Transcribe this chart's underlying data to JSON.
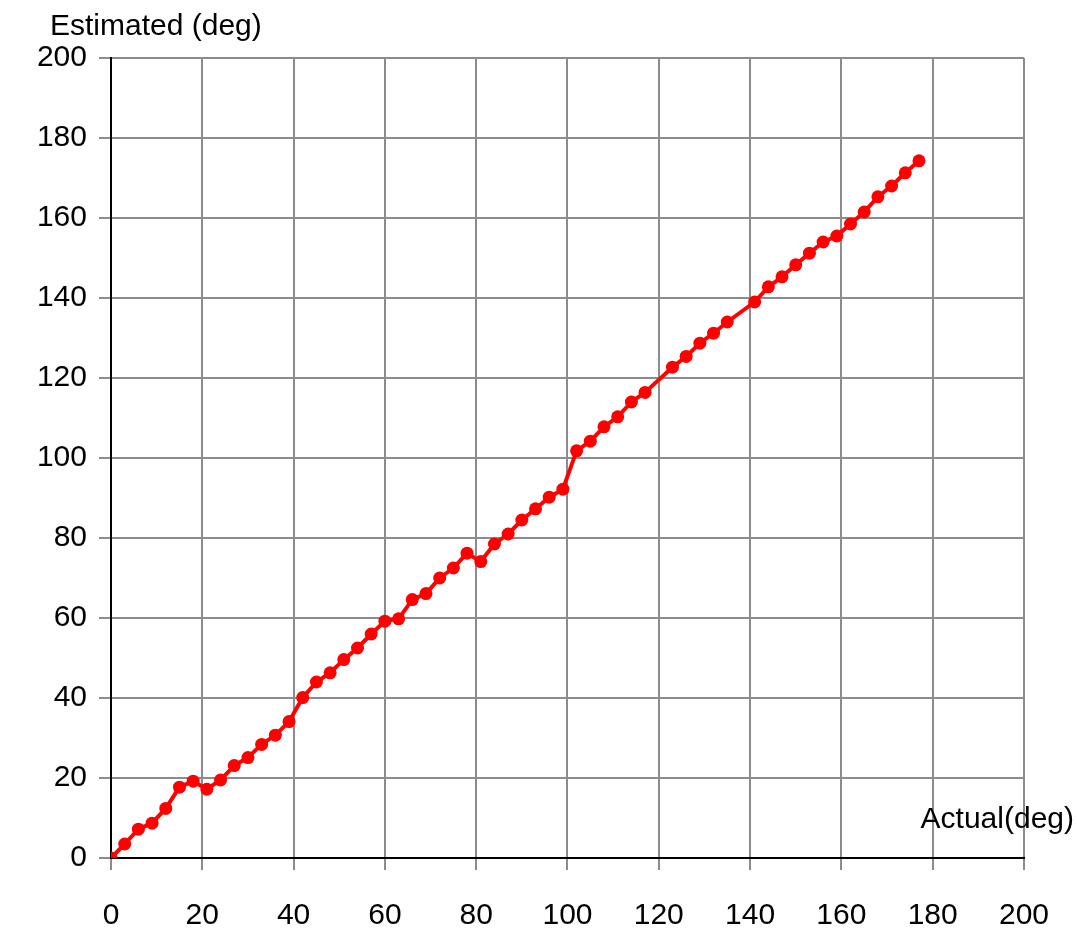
{
  "chart_data": {
    "type": "line",
    "xlabel": "Actual(deg)",
    "ylabel": "Estimated (deg)",
    "x": [
      0,
      3,
      6,
      9,
      12,
      15,
      18,
      21,
      24,
      27,
      30,
      33,
      36,
      39,
      42,
      45,
      48,
      51,
      54,
      57,
      60,
      63,
      66,
      69,
      72,
      75,
      78,
      81,
      84,
      87,
      90,
      93,
      96,
      99,
      102,
      105,
      108,
      111,
      114,
      117,
      123,
      126,
      129,
      132,
      135,
      141,
      144,
      147,
      150,
      153,
      156,
      159,
      162,
      165,
      168,
      171,
      174,
      177
    ],
    "values": [
      0,
      3.5,
      7.2,
      8.7,
      12.4,
      17.7,
      19.2,
      17.2,
      19.5,
      23.1,
      25.1,
      28.4,
      30.7,
      34.1,
      40.1,
      44,
      46.3,
      49.6,
      52.5,
      56,
      59.2,
      59.8,
      64.6,
      66.1,
      70,
      72.5,
      76.2,
      74.1,
      78.5,
      81,
      84.5,
      87.3,
      90.2,
      92.2,
      101.8,
      104.2,
      107.8,
      110.3,
      114,
      116.4,
      122.7,
      125.4,
      128.7,
      131.2,
      134,
      139,
      142.8,
      145.3,
      148.3,
      151.2,
      154,
      155.5,
      158.5,
      161.5,
      165.3,
      168,
      171.3,
      174.3
    ],
    "color": "#ff0000",
    "xlim": [
      0,
      200
    ],
    "ylim": [
      0,
      200
    ],
    "xticks": [
      0,
      20,
      40,
      60,
      80,
      100,
      120,
      140,
      160,
      180,
      200
    ],
    "yticks": [
      0,
      20,
      40,
      60,
      80,
      100,
      120,
      140,
      160,
      180,
      200
    ],
    "grid": true,
    "marker": "circle",
    "line_style": "solid"
  }
}
